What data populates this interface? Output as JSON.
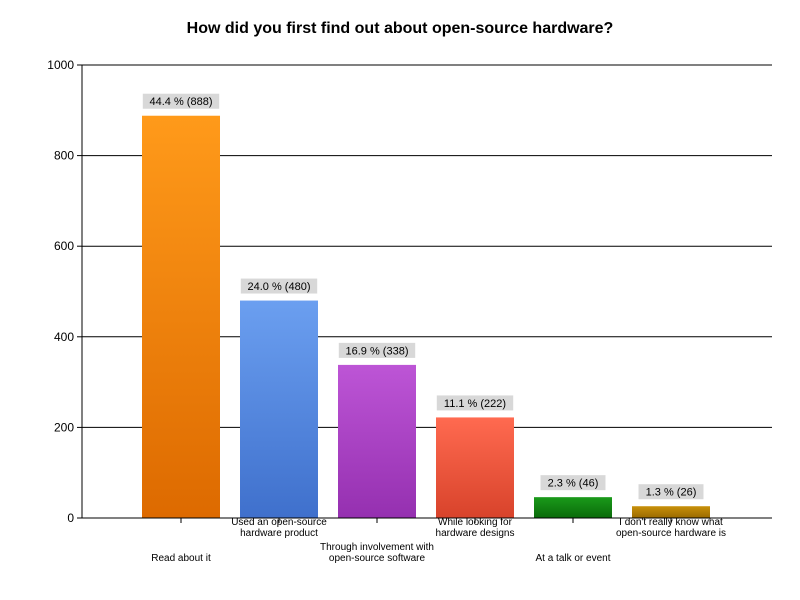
{
  "chart_data": {
    "type": "bar",
    "title": "How did you first find out about open-source hardware?",
    "xlabel": "",
    "ylabel": "",
    "ylim": [
      0,
      1000
    ],
    "yticks": [
      0,
      200,
      400,
      600,
      800,
      1000
    ],
    "grid": true,
    "categories": [
      [
        "Read about it"
      ],
      [
        "Used an open-source",
        "hardware product"
      ],
      [
        "Through involvement with",
        "open-source software"
      ],
      [
        "While looking for",
        "hardware designs"
      ],
      [
        "At a talk or event"
      ],
      [
        "I don't really know what",
        "open-source hardware is"
      ]
    ],
    "values": [
      888,
      480,
      338,
      222,
      46,
      26
    ],
    "percent_labels": [
      "44.4 %",
      "24.0 %",
      "16.9 %",
      "11.1 %",
      "2.3 %",
      "1.3 %"
    ],
    "data_labels": [
      "44.4 % (888)",
      "24.0 % (480)",
      "16.9 % (338)",
      "11.1 % (222)",
      "2.3 % (46)",
      "1.3 % (26)"
    ],
    "colors": [
      [
        "#ff9a1a",
        "#dd6a00"
      ],
      [
        "#6b9ff0",
        "#3f70cc"
      ],
      [
        "#bd55d6",
        "#9530b0"
      ],
      [
        "#ff6a50",
        "#d8432b"
      ],
      [
        "#1a9a1a",
        "#0a6a0a"
      ],
      [
        "#c8900a",
        "#9a6a00"
      ]
    ]
  }
}
